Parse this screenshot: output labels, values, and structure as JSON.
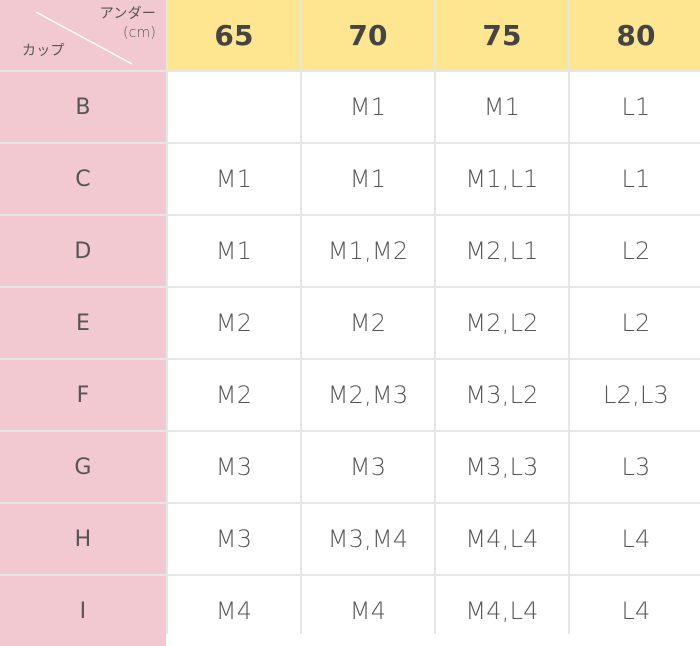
{
  "header": {
    "under_label": "アンダー",
    "under_unit": "(cm)",
    "cup_label": "カップ",
    "columns": [
      "65",
      "70",
      "75",
      "80"
    ]
  },
  "rows": [
    {
      "cup": "B",
      "values": [
        "",
        "M1",
        "M1",
        "L1"
      ]
    },
    {
      "cup": "C",
      "values": [
        "M1",
        "M1",
        "M1,L1",
        "L1"
      ]
    },
    {
      "cup": "D",
      "values": [
        "M1",
        "M1,M2",
        "M2,L1",
        "L2"
      ]
    },
    {
      "cup": "E",
      "values": [
        "M2",
        "M2",
        "M2,L2",
        "L2"
      ]
    },
    {
      "cup": "F",
      "values": [
        "M2",
        "M2,M3",
        "M3,L2",
        "L2,L3"
      ]
    },
    {
      "cup": "G",
      "values": [
        "M3",
        "M3",
        "M3,L3",
        "L3"
      ]
    },
    {
      "cup": "H",
      "values": [
        "M3",
        "M3,M4",
        "M4,L4",
        "L4"
      ]
    },
    {
      "cup": "I",
      "values": [
        "M4",
        "M4",
        "M4,L4",
        "L4"
      ]
    }
  ],
  "colors": {
    "header_bg": "#fde68f",
    "cup_bg": "#f2c9d0",
    "grid_line": "#e6e6e6",
    "text": "#555555"
  }
}
